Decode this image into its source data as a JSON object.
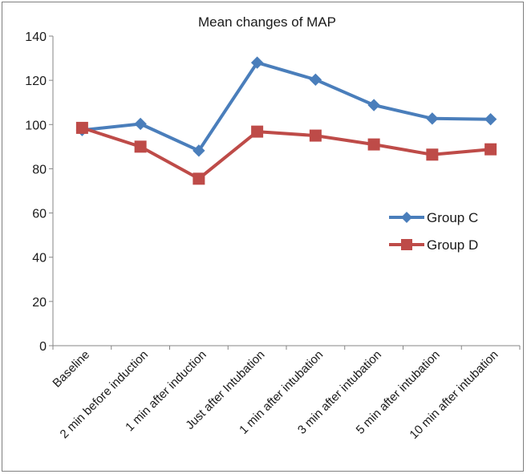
{
  "chart_data": {
    "type": "line",
    "title": "Mean changes of MAP",
    "xlabel": "",
    "ylabel": "",
    "ylim": [
      0,
      140
    ],
    "yticks": [
      0,
      20,
      40,
      60,
      80,
      100,
      120,
      140
    ],
    "ytick_labels": [
      "0",
      "20",
      "40",
      "60",
      "80",
      "100",
      "120",
      "140"
    ],
    "grid": false,
    "legend_position": "right",
    "categories": [
      "Baseline",
      "2 min before induction",
      "1 min after induction",
      "Just after Intubation",
      "1 min after intubation",
      "3 min after intubation",
      "5 min after intubation",
      "10 min after intubation"
    ],
    "series": [
      {
        "name": "Group C",
        "color": "#4a7ebb",
        "marker": "diamond",
        "values": [
          97.5,
          100.3,
          88.2,
          128.0,
          120.3,
          108.8,
          102.7,
          102.4
        ]
      },
      {
        "name": "Group D",
        "color": "#be4b48",
        "marker": "square",
        "values": [
          98.5,
          90.0,
          75.5,
          96.8,
          95.0,
          91.0,
          86.4,
          88.8
        ]
      }
    ]
  }
}
